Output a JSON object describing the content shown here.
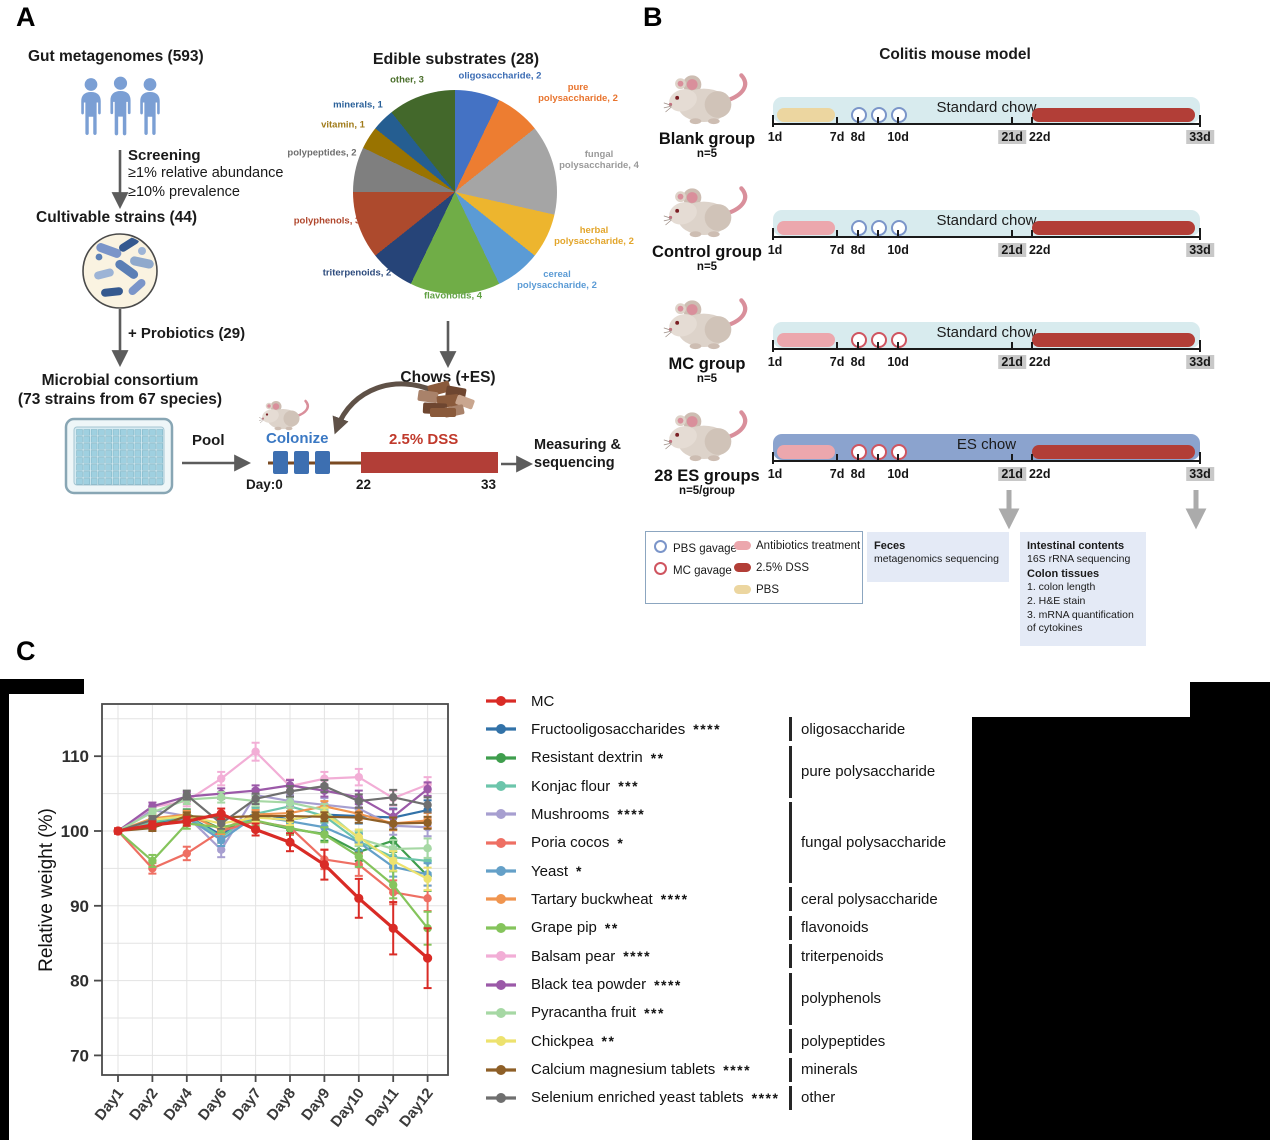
{
  "panelA": {
    "label": "A",
    "gut_title": "Gut metagenomes (593)",
    "screening_title": "Screening",
    "screening_line1": "≥1% relative abundance",
    "screening_line2": "≥10% prevalence",
    "cultivable_title": "Cultivable strains (44)",
    "probiotics_label": "+ Probiotics (29)",
    "consortium_line1": "Microbial consortium",
    "consortium_line2": "(73 strains from 67 species)",
    "pool_label": "Pool",
    "colonize_label": "Colonize",
    "colonize_color": "#3a78c3",
    "dss_label": "2.5% DSS",
    "dss_color": "#c0392b",
    "day0": "Day:0",
    "day22": "22",
    "day33": "33",
    "measuring_line1": "Measuring &",
    "measuring_line2": "sequencing",
    "chows_label": "Chows (+ES)"
  },
  "panelB": {
    "label": "B",
    "title": "Colitis mouse model",
    "rows": [
      {
        "group": "Blank group",
        "n": "n=5",
        "chow": "Standard chow",
        "chow_type": "standard",
        "pre_bar": "pbs",
        "gavage": "pbs"
      },
      {
        "group": "Control group",
        "n": "n=5",
        "chow": "Standard chow",
        "chow_type": "standard",
        "pre_bar": "antibiotics",
        "gavage": "pbs"
      },
      {
        "group": "MC group",
        "n": "n=5",
        "chow": "Standard chow",
        "chow_type": "standard",
        "pre_bar": "antibiotics",
        "gavage": "mc"
      },
      {
        "group": "28 ES groups",
        "n": "n=5/group",
        "chow": "ES chow",
        "chow_type": "es",
        "pre_bar": "antibiotics",
        "gavage": "mc"
      }
    ],
    "tick_labels": [
      {
        "f": 0,
        "t": "1d",
        "bg": false
      },
      {
        "f": 0.15,
        "t": "7d",
        "bg": false
      },
      {
        "f": 0.199,
        "t": "8d",
        "bg": false
      },
      {
        "f": 0.293,
        "t": "10d",
        "bg": false
      },
      {
        "f": 0.56,
        "t": "21d",
        "bg": true
      },
      {
        "f": 0.606,
        "t": "22d",
        "bg": false
      },
      {
        "f": 1,
        "t": "33d",
        "bg": true
      }
    ],
    "colors": {
      "standard_band": "#d8ebee",
      "es_band": "#8ba3ce",
      "pbs_bar": "#ecd6a0",
      "antibiotics_bar": "#eca7ad",
      "dss_bar": "#b23e37",
      "pbs_circle": "#7b95c9",
      "mc_circle": "#cf5560"
    },
    "legend": {
      "pbs_gavage": "PBS gavage",
      "mc_gavage": "MC gavage",
      "antibiotics": "Antibiotics treatment",
      "dss": "2.5% DSS",
      "pbs": "PBS"
    },
    "feces_box": {
      "title": "Feces",
      "line1": "metagenomics sequencing"
    },
    "intestinal_box": {
      "title1": "Intestinal contents",
      "line1": "16S rRNA sequencing",
      "title2": "Colon tissues",
      "line2": "1. colon length",
      "line3": "2. H&E stain",
      "line4": "3. mRNA quantification",
      "line5": "of cytokines"
    }
  },
  "panelC": {
    "label": "C"
  },
  "chart_data": [
    {
      "type": "pie",
      "title": "Edible substrates (28)",
      "total": 28,
      "slices": [
        {
          "label": "oligosaccharide, 2",
          "value": 2,
          "color": "#4472c4",
          "label_color": "#3b6cb4"
        },
        {
          "label": "pure polysaccharide, 2",
          "value": 2,
          "color": "#ed7d31",
          "label_color": "#e8742e"
        },
        {
          "label": "fungal polysaccharide, 4",
          "value": 4,
          "color": "#a5a5a5",
          "label_color": "#9a9a9a"
        },
        {
          "label": "herbal polysaccharide, 2",
          "value": 2,
          "color": "#edb52e",
          "label_color": "#e3a62c"
        },
        {
          "label": "cereal polysaccharide, 2",
          "value": 2,
          "color": "#5b9bd5",
          "label_color": "#5b9bd5"
        },
        {
          "label": "flavonoids, 4",
          "value": 4,
          "color": "#70ad47",
          "label_color": "#61a144"
        },
        {
          "label": "triterpenoids, 2",
          "value": 2,
          "color": "#264478",
          "label_color": "#2d4b7d"
        },
        {
          "label": "polyphenols, 3",
          "value": 3,
          "color": "#ad4a2d",
          "label_color": "#b0472d"
        },
        {
          "label": "polypeptides, 2",
          "value": 2,
          "color": "#7f7f7f",
          "label_color": "#6e6e6e"
        },
        {
          "label": "vitamin, 1",
          "value": 1,
          "color": "#997300",
          "label_color": "#a07b1a"
        },
        {
          "label": "minerals, 1",
          "value": 1,
          "color": "#255e91",
          "label_color": "#2a6099"
        },
        {
          "label": "other, 3",
          "value": 3,
          "color": "#43682b",
          "label_color": "#4a6e2a"
        }
      ]
    },
    {
      "type": "line",
      "title": "",
      "xlabel": "",
      "ylabel": "Relative weight (%)",
      "ylim": [
        70,
        110
      ],
      "ytick_step": 10,
      "grid_step": 5,
      "grid": true,
      "legend_position": "right",
      "categories": [
        "Day1",
        "Day2",
        "Day4",
        "Day6",
        "Day7",
        "Day8",
        "Day9",
        "Day10",
        "Day11",
        "Day12"
      ],
      "series": [
        {
          "name": "MC",
          "stars": "",
          "color": "#d92b26",
          "values": [
            100,
            100.8,
            101.3,
            102.3,
            100.2,
            98.5,
            95.5,
            91,
            87,
            83
          ],
          "errors": [
            0.3,
            0.5,
            0.6,
            0.7,
            0.8,
            1.2,
            2.0,
            2.6,
            3.5,
            4.0
          ]
        },
        {
          "name": "Fructooligosaccharides",
          "stars": "****",
          "color": "#3272a8",
          "values": [
            100,
            100.8,
            102.0,
            99.5,
            102.5,
            101.5,
            102.2,
            102.0,
            101.8,
            102.8
          ],
          "errors": [
            0.3,
            0.5,
            0.6,
            0.7,
            0.7,
            0.8,
            0.8,
            1.0,
            1.2,
            1.3
          ]
        },
        {
          "name": "Resistant dextrin",
          "stars": "**",
          "color": "#3f9e4d",
          "values": [
            100,
            101.0,
            102.3,
            100.3,
            101.3,
            100.3,
            99.6,
            97.2,
            98.7,
            94.0
          ],
          "errors": [
            0.3,
            0.5,
            0.6,
            0.6,
            0.7,
            0.8,
            0.9,
            1.2,
            1.5,
            2.0
          ]
        },
        {
          "name": "Konjac flour",
          "stars": "***",
          "color": "#6cc5ab",
          "values": [
            100,
            101.2,
            102.0,
            99.2,
            102.3,
            103.3,
            102.0,
            98.6,
            96.5,
            96.0
          ],
          "errors": [
            0.3,
            0.5,
            0.6,
            0.8,
            0.7,
            0.8,
            0.9,
            1.2,
            1.4,
            1.6
          ]
        },
        {
          "name": "Mushrooms",
          "stars": "****",
          "color": "#a79fd0",
          "values": [
            100,
            102.8,
            102.0,
            97.5,
            104.8,
            104.0,
            103.5,
            103.0,
            100.7,
            100.5
          ],
          "errors": [
            0.3,
            0.6,
            0.7,
            1.0,
            0.8,
            0.8,
            0.9,
            1.0,
            1.2,
            1.2
          ]
        },
        {
          "name": "Poria cocos",
          "stars": "*",
          "color": "#ee6f63",
          "values": [
            100,
            95.0,
            97.0,
            100.0,
            101.3,
            100.5,
            96.2,
            95.5,
            91.8,
            91.0
          ],
          "errors": [
            0.4,
            0.7,
            0.9,
            0.8,
            0.8,
            1.0,
            1.3,
            1.5,
            1.6,
            1.7
          ]
        },
        {
          "name": "Yeast",
          "stars": "*",
          "color": "#64a0c8",
          "values": [
            100,
            100.7,
            101.8,
            98.8,
            102.0,
            101.3,
            100.5,
            98.5,
            95.2,
            94.2
          ],
          "errors": [
            0.3,
            0.5,
            0.6,
            0.8,
            0.7,
            0.8,
            0.9,
            1.1,
            1.3,
            1.5
          ]
        },
        {
          "name": "Tartary buckwheat",
          "stars": "****",
          "color": "#f0954f",
          "values": [
            100,
            101.7,
            102.2,
            100.2,
            102.2,
            102.4,
            103.3,
            102.3,
            101.0,
            101.4
          ],
          "errors": [
            0.3,
            0.5,
            0.5,
            0.6,
            0.6,
            0.7,
            0.7,
            0.8,
            0.9,
            1.0
          ]
        },
        {
          "name": "Grape pip",
          "stars": "**",
          "color": "#85c45c",
          "values": [
            100,
            96.0,
            101.0,
            100.5,
            101.4,
            100.4,
            99.5,
            96.6,
            92.8,
            87.0
          ],
          "errors": [
            0.3,
            0.8,
            0.7,
            0.7,
            0.7,
            0.8,
            1.0,
            1.4,
            1.8,
            2.2
          ]
        },
        {
          "name": "Balsam pear",
          "stars": "****",
          "color": "#f2aed6",
          "values": [
            100,
            103.2,
            104.0,
            107.0,
            110.6,
            106.0,
            107.0,
            107.2,
            104.4,
            106.2
          ],
          "errors": [
            0.3,
            0.6,
            0.7,
            0.9,
            1.2,
            0.9,
            0.9,
            1.1,
            1.0,
            1.0
          ]
        },
        {
          "name": "Black tea powder",
          "stars": "****",
          "color": "#9b59a8",
          "values": [
            100,
            103.3,
            104.6,
            105.0,
            105.4,
            106.1,
            105.4,
            104.5,
            101.9,
            105.6
          ],
          "errors": [
            0.3,
            0.5,
            0.6,
            0.7,
            0.7,
            0.7,
            0.8,
            0.9,
            1.0,
            0.9
          ]
        },
        {
          "name": "Pyracantha fruit",
          "stars": "***",
          "color": "#a6d8a4",
          "values": [
            100,
            102.5,
            104.2,
            104.5,
            104.0,
            103.8,
            102.8,
            99.0,
            97.6,
            97.7
          ],
          "errors": [
            0.3,
            0.5,
            0.6,
            0.7,
            0.7,
            0.7,
            0.8,
            1.0,
            1.2,
            1.3
          ]
        },
        {
          "name": "Chickpea",
          "stars": "**",
          "color": "#ede26e",
          "values": [
            100,
            101.5,
            102.0,
            101.0,
            101.8,
            101.5,
            102.3,
            99.2,
            96.0,
            93.6
          ],
          "errors": [
            0.3,
            0.5,
            0.5,
            0.6,
            0.6,
            0.7,
            0.8,
            1.0,
            1.3,
            1.5
          ]
        },
        {
          "name": "Calcium magnesium tablets",
          "stars": "****",
          "color": "#8e5f27",
          "values": [
            100,
            100.4,
            102.0,
            101.8,
            102.0,
            102.0,
            101.9,
            101.8,
            101.0,
            101.1
          ],
          "errors": [
            0.3,
            0.4,
            0.5,
            0.5,
            0.5,
            0.6,
            0.6,
            0.7,
            0.8,
            0.8
          ]
        },
        {
          "name": "Selenium enriched yeast tablets",
          "stars": "****",
          "color": "#6f6f6f",
          "values": [
            100,
            101.5,
            104.8,
            101.0,
            104.3,
            105.3,
            106.0,
            104.0,
            104.5,
            103.5
          ],
          "errors": [
            0.3,
            0.5,
            0.6,
            0.7,
            0.7,
            0.7,
            0.8,
            0.9,
            1.0,
            1.0
          ]
        }
      ],
      "categories_brackets": [
        {
          "label": "oligosaccharide",
          "start": 1,
          "end": 1
        },
        {
          "label": "pure polysaccharide",
          "start": 2,
          "end": 3
        },
        {
          "label": "fungal polysaccharide",
          "start": 4,
          "end": 6
        },
        {
          "label": "ceral polysaccharide",
          "start": 7,
          "end": 7
        },
        {
          "label": "flavonoids",
          "start": 8,
          "end": 8
        },
        {
          "label": "triterpenoids",
          "start": 9,
          "end": 9
        },
        {
          "label": "polyphenols",
          "start": 10,
          "end": 11
        },
        {
          "label": "polypeptides",
          "start": 12,
          "end": 12
        },
        {
          "label": "minerals",
          "start": 13,
          "end": 13
        },
        {
          "label": "other",
          "start": 14,
          "end": 14
        }
      ]
    }
  ]
}
